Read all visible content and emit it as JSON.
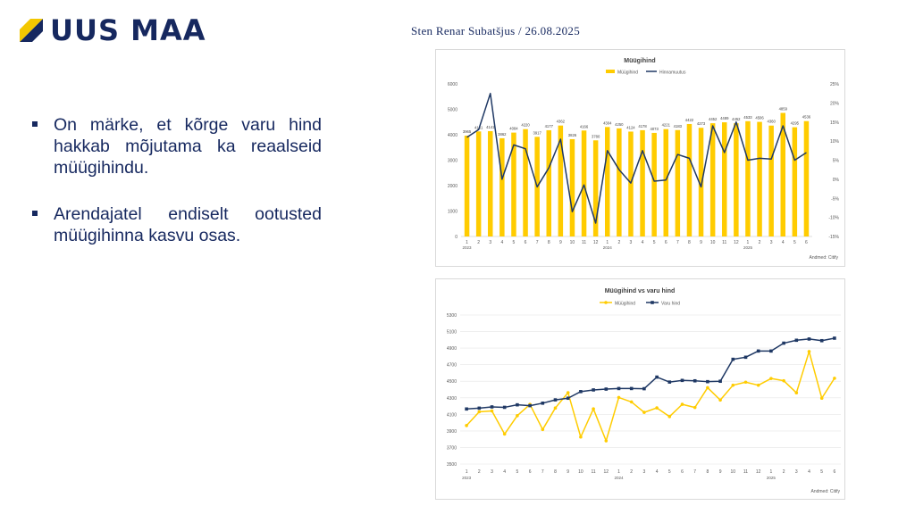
{
  "header": {
    "logo_text": "UUS MAA",
    "byline": "Sten Renar Subatšjus / 26.08.2025"
  },
  "bullets": [
    "On märke, et kõrge varu hind hakkab mõjutama ka reaalseid müügihindu.",
    "Arendajatel endiselt ootusted müügihinna kasvu osas."
  ],
  "colors": {
    "brand_navy": "#16285f",
    "brand_yellow": "#f3c700",
    "chart_navy": "#1f3864",
    "chart_yellow": "#ffcc00"
  },
  "chart_data": [
    {
      "type": "bar",
      "title": "Müügihind",
      "categories": [
        "1",
        "2",
        "3",
        "4",
        "5",
        "6",
        "7",
        "8",
        "9",
        "10",
        "11",
        "12",
        "1",
        "2",
        "3",
        "4",
        "5",
        "6",
        "7",
        "8",
        "9",
        "10",
        "11",
        "12",
        "1",
        "2",
        "3",
        "4",
        "5",
        "6"
      ],
      "year_labels": [
        "2023",
        "2024",
        "2025"
      ],
      "series": [
        {
          "name": "Müügihind",
          "axis": "left",
          "values": [
            3965,
            4131,
            4141,
            3862,
            4084,
            4220,
            3917,
            4177,
            4362,
            3826,
            4166,
            3780,
            4304,
            4250,
            4124,
            4178,
            4073,
            4221,
            4183,
            4422,
            4273,
            4452,
            4489,
            4452,
            4533,
            4506,
            4360,
            4859,
            4295,
            4536
          ]
        },
        {
          "name": "Hinnamuutus",
          "axis": "right",
          "type": "line",
          "values": [
            11,
            13,
            22.5,
            0,
            9,
            8,
            -2,
            3,
            10.5,
            -8.5,
            -1.5,
            -11.5,
            7.5,
            2.5,
            -1,
            7.5,
            -0.5,
            -0.2,
            6.5,
            5.5,
            -2,
            14,
            7,
            15,
            5,
            5.5,
            5.3,
            14,
            5,
            7
          ]
        }
      ],
      "data_labels": [
        "3965",
        "4131",
        "4141",
        "3862",
        "4084",
        "4220",
        "3917",
        "4177",
        "4362",
        "3826",
        "4166",
        "3780",
        "4304",
        "4250",
        "4124",
        "4178",
        "4073",
        "4221",
        "4183",
        "4422",
        "4273",
        "4452",
        "4489",
        "4452",
        "4533",
        "4506",
        "4360",
        "4859",
        "4295",
        "4536"
      ],
      "y_left": {
        "min": 0,
        "max": 6000,
        "ticks": [
          "0",
          "1000",
          "2000",
          "3000",
          "4000",
          "5000",
          "6000"
        ]
      },
      "y_right": {
        "min": -15,
        "max": 25,
        "ticks": [
          "-15%",
          "-10%",
          "-5%",
          "0%",
          "5%",
          "10%",
          "15%",
          "20%",
          "25%"
        ]
      },
      "legend_position": "top",
      "source": "Andmed: Citify",
      "grid": false
    },
    {
      "type": "line",
      "title": "Müügihind vs varu hind",
      "categories": [
        "1",
        "2",
        "3",
        "4",
        "5",
        "6",
        "7",
        "8",
        "9",
        "10",
        "11",
        "12",
        "1",
        "2",
        "3",
        "4",
        "5",
        "6",
        "7",
        "8",
        "9",
        "10",
        "11",
        "12",
        "1",
        "2",
        "3",
        "4",
        "5",
        "6"
      ],
      "year_labels": [
        "2023",
        "2024",
        "2025"
      ],
      "series": [
        {
          "name": "Müügihind",
          "values": [
            3965,
            4131,
            4141,
            3862,
            4084,
            4220,
            3917,
            4177,
            4362,
            3826,
            4166,
            3780,
            4304,
            4250,
            4124,
            4178,
            4073,
            4221,
            4183,
            4422,
            4273,
            4452,
            4489,
            4452,
            4533,
            4506,
            4360,
            4859,
            4295,
            4536
          ]
        },
        {
          "name": "Varu hind",
          "values": [
            4165,
            4175,
            4190,
            4185,
            4215,
            4205,
            4235,
            4275,
            4295,
            4375,
            4395,
            4405,
            4412,
            4412,
            4410,
            4550,
            4490,
            4510,
            4505,
            4495,
            4500,
            4765,
            4790,
            4865,
            4865,
            4960,
            4995,
            5010,
            4990,
            5020
          ]
        }
      ],
      "y": {
        "min": 3500,
        "max": 5300,
        "ticks": [
          "3500",
          "3700",
          "3900",
          "4100",
          "4300",
          "4500",
          "4700",
          "4900",
          "5100",
          "5300"
        ]
      },
      "legend_position": "top",
      "source": "Andmed: Citify",
      "grid": true
    }
  ]
}
